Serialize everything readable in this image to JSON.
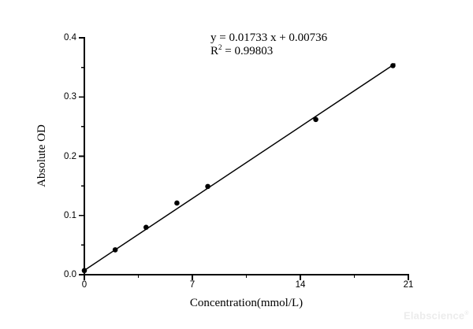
{
  "chart_data": {
    "type": "scatter",
    "title": "",
    "xlabel": "Concentration(mmol/L)",
    "ylabel": "Absolute OD",
    "xlim": [
      0,
      21
    ],
    "ylim": [
      0.0,
      0.4
    ],
    "grid": false,
    "legend": null,
    "x_major_ticks": [
      {
        "value": 0,
        "label": "0"
      },
      {
        "value": 7,
        "label": "7"
      },
      {
        "value": 14,
        "label": "14"
      },
      {
        "value": 21,
        "label": "21"
      }
    ],
    "x_minor_ticks": [
      3.5,
      10.5,
      17.5
    ],
    "y_major_ticks": [
      {
        "value": 0.0,
        "label": "0.0"
      },
      {
        "value": 0.1,
        "label": "0.1"
      },
      {
        "value": 0.2,
        "label": "0.2"
      },
      {
        "value": 0.3,
        "label": "0.3"
      },
      {
        "value": 0.4,
        "label": "0.4"
      }
    ],
    "y_minor_ticks": [
      0.05,
      0.15,
      0.25,
      0.35
    ],
    "series": [
      {
        "name": "standard-points",
        "marker": "filled-circle",
        "color": "#000000",
        "points": [
          [
            0,
            0.007
          ],
          [
            2,
            0.042
          ],
          [
            4,
            0.08
          ],
          [
            6,
            0.121
          ],
          [
            8,
            0.149
          ],
          [
            15,
            0.262
          ],
          [
            20,
            0.353
          ]
        ]
      }
    ],
    "fit_line": {
      "slope": 0.01733,
      "intercept": 0.00736,
      "r_squared": 0.99803,
      "x_start": 0,
      "x_end": 20.15,
      "color": "#000000"
    },
    "annotations": {
      "equation": "y = 0.01733 x + 0.00736",
      "r_label": "R",
      "r_exponent": "2",
      "r_value": " = 0.99803"
    }
  },
  "watermark": {
    "text": "Elabscience",
    "registered": "®",
    "color": "#ececec"
  }
}
